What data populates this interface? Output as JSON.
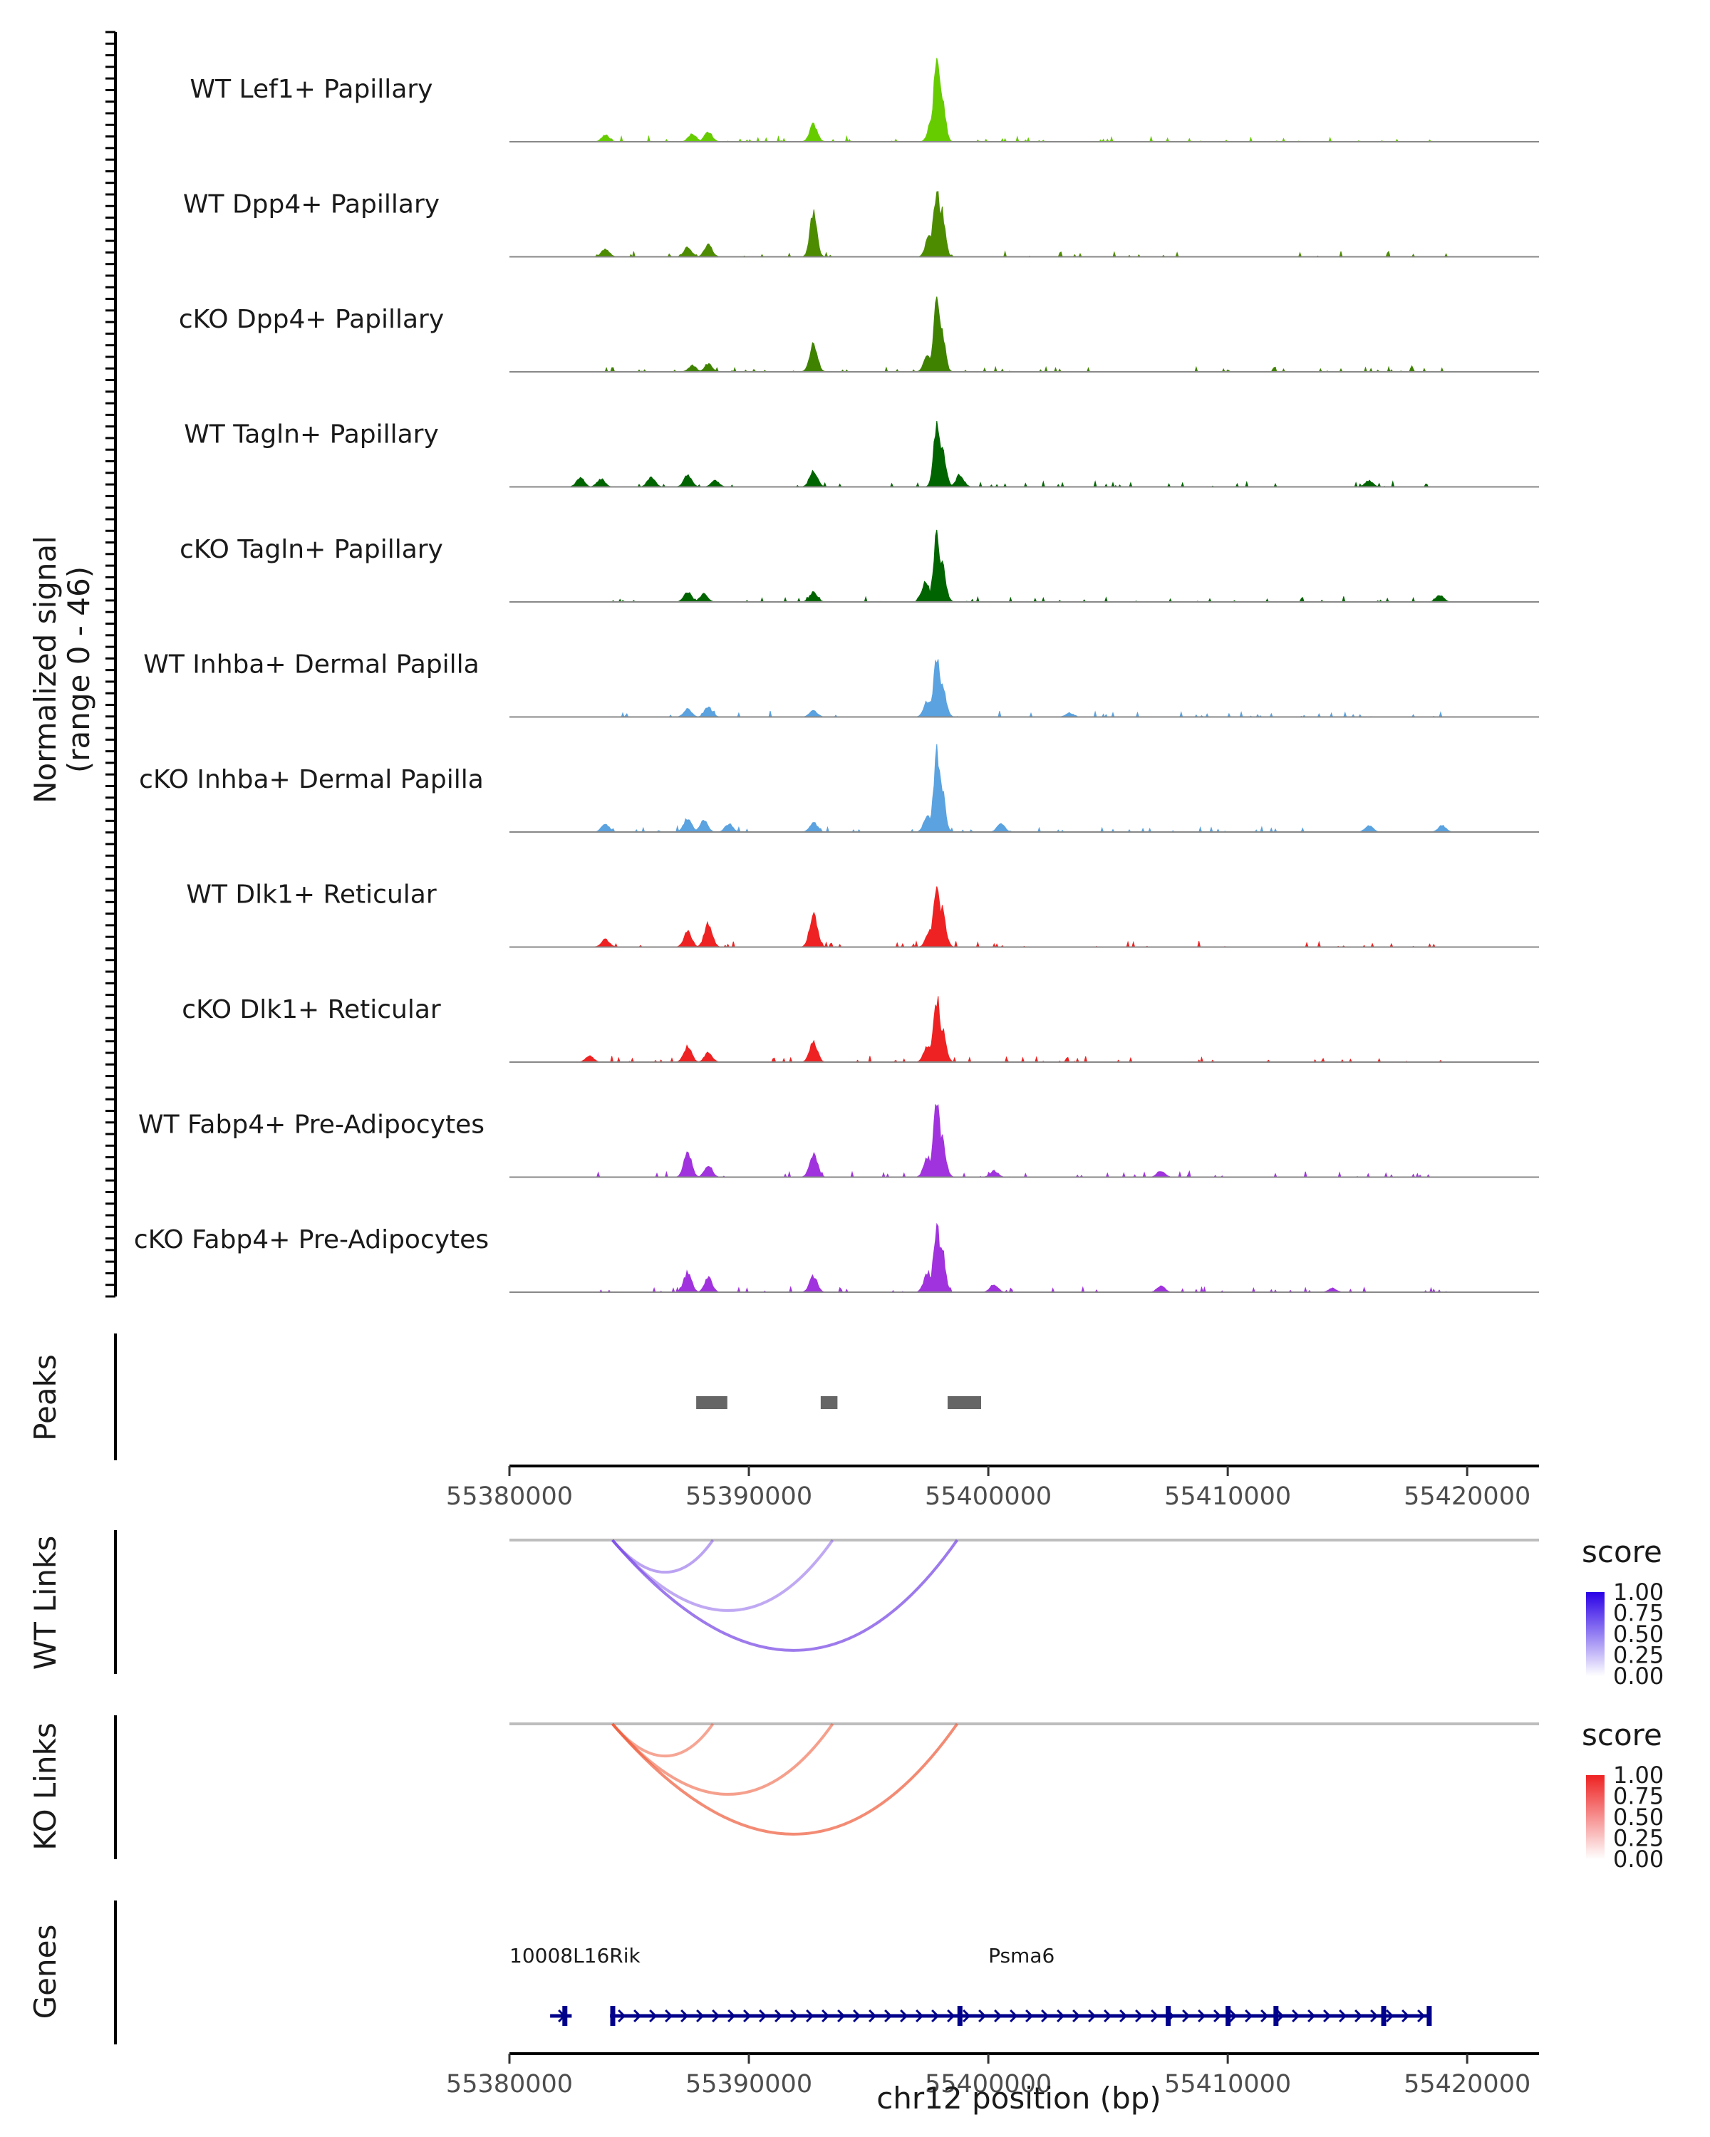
{
  "chart_data": {
    "type": "area",
    "region": "chr12",
    "x_range": [
      55380000,
      55423000
    ],
    "y_label_line1": "Normalized signal",
    "y_label_line2": "(range 0 - 46)",
    "tracks": [
      {
        "name": "WT Lef1+ Papillary",
        "color": "#66cc00",
        "peaks": [
          [
            55384200,
            0.08
          ],
          [
            55388000,
            0.1
          ],
          [
            55388700,
            0.12
          ],
          [
            55393300,
            0.22
          ],
          [
            55398700,
            1.0
          ],
          [
            55398900,
            0.6
          ],
          [
            55398500,
            0.3
          ]
        ]
      },
      {
        "name": "WT Dpp4+ Papillary",
        "color": "#4d8c00",
        "peaks": [
          [
            55384200,
            0.1
          ],
          [
            55387800,
            0.12
          ],
          [
            55388700,
            0.15
          ],
          [
            55393300,
            0.55
          ],
          [
            55398700,
            0.85
          ],
          [
            55398900,
            0.6
          ],
          [
            55398400,
            0.3
          ]
        ]
      },
      {
        "name": "cKO Dpp4+ Papillary",
        "color": "#3f8200",
        "peaks": [
          [
            55388000,
            0.08
          ],
          [
            55388700,
            0.1
          ],
          [
            55393300,
            0.35
          ],
          [
            55398700,
            0.95
          ],
          [
            55398900,
            0.55
          ],
          [
            55398300,
            0.2
          ]
        ]
      },
      {
        "name": "WT Tagln+ Papillary",
        "color": "#006400",
        "peaks": [
          [
            55383100,
            0.12
          ],
          [
            55384000,
            0.1
          ],
          [
            55386200,
            0.12
          ],
          [
            55387800,
            0.15
          ],
          [
            55389000,
            0.08
          ],
          [
            55393300,
            0.2
          ],
          [
            55398700,
            0.75
          ],
          [
            55398900,
            0.5
          ],
          [
            55399700,
            0.15
          ],
          [
            55417600,
            0.08
          ]
        ]
      },
      {
        "name": "cKO Tagln+ Papillary",
        "color": "#006400",
        "peaks": [
          [
            55387800,
            0.12
          ],
          [
            55388500,
            0.1
          ],
          [
            55393300,
            0.12
          ],
          [
            55398700,
            0.85
          ],
          [
            55398900,
            0.5
          ],
          [
            55398200,
            0.25
          ],
          [
            55420700,
            0.08
          ]
        ]
      },
      {
        "name": "WT Inhba+ Dermal Papilla",
        "color": "#5aa2e0",
        "peaks": [
          [
            55387800,
            0.1
          ],
          [
            55388700,
            0.12
          ],
          [
            55393300,
            0.08
          ],
          [
            55398700,
            0.75
          ],
          [
            55398900,
            0.45
          ],
          [
            55398300,
            0.2
          ],
          [
            55404500,
            0.05
          ]
        ]
      },
      {
        "name": "cKO Inhba+ Dermal Papilla",
        "color": "#5aa2e0",
        "peaks": [
          [
            55384200,
            0.1
          ],
          [
            55387800,
            0.18
          ],
          [
            55388500,
            0.15
          ],
          [
            55389600,
            0.1
          ],
          [
            55393300,
            0.12
          ],
          [
            55398700,
            1.0
          ],
          [
            55398900,
            0.6
          ],
          [
            55398300,
            0.2
          ],
          [
            55401500,
            0.1
          ],
          [
            55417600,
            0.08
          ],
          [
            55420800,
            0.08
          ]
        ]
      },
      {
        "name": "WT Dlk1+ Reticular",
        "color": "#ee2222",
        "peaks": [
          [
            55384200,
            0.1
          ],
          [
            55387800,
            0.2
          ],
          [
            55388700,
            0.3
          ],
          [
            55393300,
            0.4
          ],
          [
            55398700,
            0.75
          ],
          [
            55398900,
            0.5
          ],
          [
            55398400,
            0.2
          ]
        ]
      },
      {
        "name": "cKO Dlk1+ Reticular",
        "color": "#ee2222",
        "peaks": [
          [
            55383500,
            0.08
          ],
          [
            55387800,
            0.2
          ],
          [
            55388700,
            0.12
          ],
          [
            55393300,
            0.25
          ],
          [
            55398700,
            0.8
          ],
          [
            55398900,
            0.45
          ],
          [
            55398300,
            0.2
          ]
        ]
      },
      {
        "name": "WT Fabp4+ Pre-Adipocytes",
        "color": "#a033dd",
        "peaks": [
          [
            55387800,
            0.3
          ],
          [
            55388700,
            0.15
          ],
          [
            55393300,
            0.3
          ],
          [
            55398700,
            0.95
          ],
          [
            55398900,
            0.5
          ],
          [
            55398300,
            0.25
          ],
          [
            55401200,
            0.08
          ],
          [
            55408500,
            0.08
          ]
        ]
      },
      {
        "name": "cKO Fabp4+ Pre-Adipocytes",
        "color": "#a033dd",
        "peaks": [
          [
            55387800,
            0.25
          ],
          [
            55388700,
            0.18
          ],
          [
            55393300,
            0.2
          ],
          [
            55398700,
            0.8
          ],
          [
            55398900,
            0.6
          ],
          [
            55398300,
            0.25
          ],
          [
            55401200,
            0.1
          ],
          [
            55408500,
            0.08
          ],
          [
            55416000,
            0.05
          ]
        ]
      }
    ],
    "peaks_track": {
      "label": "Peaks",
      "regions": [
        [
          55387800,
          55389100
        ],
        [
          55393000,
          55393700
        ],
        [
          55398300,
          55399700
        ]
      ],
      "color": "#666666"
    },
    "x_ticks": [
      55380000,
      55390000,
      55400000,
      55410000,
      55420000
    ],
    "x_tick_labels": [
      "55380000",
      "55390000",
      "55400000",
      "55410000",
      "55420000"
    ],
    "wt_links": {
      "label": "WT Links",
      "links": [
        {
          "start": 55384300,
          "end": 55388500,
          "score": 0.25
        },
        {
          "start": 55384300,
          "end": 55393500,
          "score": 0.2
        },
        {
          "start": 55384300,
          "end": 55398700,
          "score": 0.6
        }
      ]
    },
    "ko_links": {
      "label": "KO Links",
      "links": [
        {
          "start": 55384300,
          "end": 55388500,
          "score": 0.3
        },
        {
          "start": 55384300,
          "end": 55393500,
          "score": 0.35
        },
        {
          "start": 55384300,
          "end": 55398700,
          "score": 0.55
        }
      ]
    },
    "legend_wt": {
      "title": "score",
      "color": "#2a00e6",
      "ticks": [
        "1.00",
        "0.75",
        "0.50",
        "0.25",
        "0.00"
      ]
    },
    "legend_ko": {
      "title": "score",
      "color": "#ee2222",
      "ticks": [
        "1.00",
        "0.75",
        "0.50",
        "0.25",
        "0.00"
      ]
    },
    "genes_track": {
      "label": "Genes",
      "genes": [
        {
          "name": "10008L16Rik",
          "start": 55381700,
          "end": 55382600,
          "label_x": 55380000
        },
        {
          "name": "Psma6",
          "start": 55384200,
          "end": 55418500,
          "label_x": 55400000
        }
      ],
      "color": "#00008b"
    },
    "xlabel": "chr12 position (bp)"
  }
}
